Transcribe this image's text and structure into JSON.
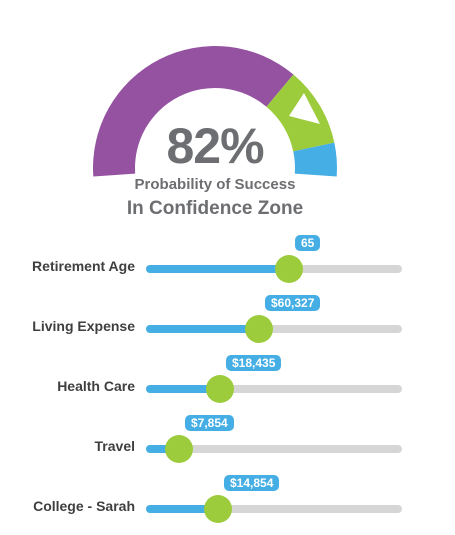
{
  "colors": {
    "purple": "#9452a1",
    "green": "#9ccb3b",
    "blue": "#45aee4",
    "track": "#d6d6d6",
    "text": "#6d6e71",
    "label_text": "#3f3f3f"
  },
  "gauge": {
    "percent_text": "82%",
    "percent_value": 82,
    "subtitle": "Probability of Success",
    "zone_text": "In Confidence Zone",
    "marker_icon": "triangle-pointer-icon"
  },
  "sliders": [
    {
      "key": "retirement-age",
      "label": "Retirement Age",
      "value": "65",
      "fraction": 0.56
    },
    {
      "key": "living-expense",
      "label": "Living Expense",
      "value": "$60,327",
      "fraction": 0.44
    },
    {
      "key": "health-care",
      "label": "Health Care",
      "value": "$18,435",
      "fraction": 0.29
    },
    {
      "key": "travel",
      "label": "Travel",
      "value": "$7,854",
      "fraction": 0.13
    },
    {
      "key": "college-sarah",
      "label": "College - Sarah",
      "value": "$14,854",
      "fraction": 0.28
    }
  ]
}
